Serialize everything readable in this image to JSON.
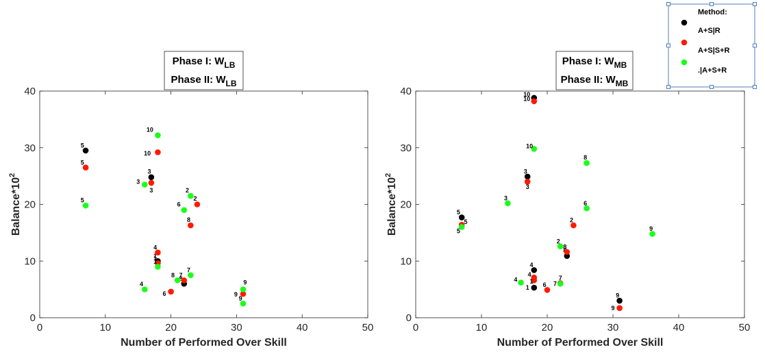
{
  "chart_data": [
    {
      "type": "scatter",
      "title_lines": [
        {
          "text": "Phase I: W",
          "sub": "LB"
        },
        {
          "text": "Phase II: W",
          "sub": "LB"
        }
      ],
      "xlabel": "Number of Performed Over Skill",
      "ylabel": "Balance*10",
      "ylabel_sup": "2",
      "xlim": [
        0,
        50
      ],
      "ylim": [
        0,
        40
      ],
      "xticks": [
        "0",
        "10",
        "20",
        "30",
        "40",
        "50"
      ],
      "yticks": [
        "0",
        "10",
        "20",
        "30",
        "40"
      ],
      "grid": false,
      "series": [
        {
          "color": "#000000",
          "points": [
            {
              "label": "5",
              "x": 7,
              "y": 29.5,
              "lx": 6.5,
              "ly": 30.4
            },
            {
              "label": "3",
              "x": 17,
              "y": 24.8,
              "lx": 16.7,
              "ly": 25.8
            },
            {
              "label": "1",
              "x": 18,
              "y": 10.0,
              "lx": 17.6,
              "ly": 10.9
            },
            {
              "label": "8",
              "x": 22,
              "y": 6.0,
              "lx": 21.5,
              "ly": 6.9
            }
          ]
        },
        {
          "color": "#ff1a00",
          "points": [
            {
              "label": "5",
              "x": 7,
              "y": 26.5,
              "lx": 6.5,
              "ly": 27.4
            },
            {
              "label": "10",
              "x": 18,
              "y": 29.2,
              "lx": 16.4,
              "ly": 29.0
            },
            {
              "label": "3",
              "x": 17,
              "y": 23.8,
              "lx": 17.0,
              "ly": 22.5
            },
            {
              "label": "2",
              "x": 24,
              "y": 20.0,
              "lx": 23.7,
              "ly": 21.0
            },
            {
              "label": "4",
              "x": 18,
              "y": 11.5,
              "lx": 17.6,
              "ly": 12.4
            },
            {
              "label": "1",
              "x": 18,
              "y": 9.6,
              "lx": 17.6,
              "ly": 10.5
            },
            {
              "label": "8",
              "x": 23,
              "y": 16.3,
              "lx": 22.7,
              "ly": 17.3
            },
            {
              "label": "7",
              "x": 22,
              "y": 6.6,
              "lx": 21.5,
              "ly": 7.5
            },
            {
              "label": "6",
              "x": 20,
              "y": 4.6,
              "lx": 19.0,
              "ly": 4.2
            },
            {
              "label": "9",
              "x": 31,
              "y": 4.2,
              "lx": 29.9,
              "ly": 4.1
            }
          ]
        },
        {
          "color": "#1aff1a",
          "points": [
            {
              "label": "5",
              "x": 7,
              "y": 19.8,
              "lx": 6.5,
              "ly": 20.7
            },
            {
              "label": "10",
              "x": 18,
              "y": 32.2,
              "lx": 16.8,
              "ly": 33.2
            },
            {
              "label": "3",
              "x": 16,
              "y": 23.5,
              "lx": 15.0,
              "ly": 24.0
            },
            {
              "label": "2",
              "x": 23,
              "y": 21.5,
              "lx": 22.5,
              "ly": 22.5
            },
            {
              "label": "6",
              "x": 22,
              "y": 19.0,
              "lx": 21.2,
              "ly": 20.0
            },
            {
              "label": "1",
              "x": 18,
              "y": 9.0,
              "lx": 17.6,
              "ly": 9.9
            },
            {
              "label": "8",
              "x": 21,
              "y": 6.6,
              "lx": 20.3,
              "ly": 7.5
            },
            {
              "label": "7",
              "x": 23,
              "y": 7.5,
              "lx": 22.7,
              "ly": 8.4
            },
            {
              "label": "4",
              "x": 16,
              "y": 5.0,
              "lx": 15.5,
              "ly": 5.9
            },
            {
              "label": "9",
              "x": 31,
              "y": 2.5,
              "lx": 30.6,
              "ly": 3.4
            },
            {
              "label": "9",
              "x": 31,
              "y": 5.0,
              "lx": 31.3,
              "ly": 6.2
            }
          ]
        }
      ]
    },
    {
      "type": "scatter",
      "title_lines": [
        {
          "text": "Phase I: W",
          "sub": "MB"
        },
        {
          "text": "Phase II: W",
          "sub": "MB"
        }
      ],
      "xlabel": "Number of Performed Over Skill",
      "ylabel": "Balance*10",
      "ylabel_sup": "2",
      "xlim": [
        0,
        50
      ],
      "ylim": [
        0,
        40
      ],
      "xticks": [
        "0",
        "10",
        "20",
        "30",
        "40",
        "50"
      ],
      "yticks": [
        "0",
        "10",
        "20",
        "30",
        "40"
      ],
      "grid": false,
      "series": [
        {
          "color": "#000000",
          "points": [
            {
              "label": "10",
              "x": 18,
              "y": 38.8,
              "lx": 16.9,
              "ly": 39.4
            },
            {
              "label": "3",
              "x": 17,
              "y": 24.9,
              "lx": 16.7,
              "ly": 25.8
            },
            {
              "label": "5",
              "x": 7,
              "y": 17.7,
              "lx": 6.5,
              "ly": 18.6
            },
            {
              "label": "4",
              "x": 18,
              "y": 8.4,
              "lx": 17.6,
              "ly": 9.3
            },
            {
              "label": "1",
              "x": 18,
              "y": 5.3,
              "lx": 17.0,
              "ly": 5.3
            },
            {
              "label": "8",
              "x": 23,
              "y": 10.9,
              "lx": 22.7,
              "ly": 11.9
            },
            {
              "label": "9",
              "x": 31,
              "y": 3.0,
              "lx": 30.7,
              "ly": 3.9
            }
          ]
        },
        {
          "color": "#ff1a00",
          "points": [
            {
              "label": "10",
              "x": 18,
              "y": 38.2,
              "lx": 16.9,
              "ly": 38.6
            },
            {
              "label": "3",
              "x": 17,
              "y": 24.0,
              "lx": 17.0,
              "ly": 23.1
            },
            {
              "label": "5",
              "x": 7,
              "y": 16.4,
              "lx": 7.6,
              "ly": 16.9
            },
            {
              "label": "2",
              "x": 24,
              "y": 16.3,
              "lx": 23.7,
              "ly": 17.2
            },
            {
              "label": "8",
              "x": 23,
              "y": 11.6,
              "lx": 22.7,
              "ly": 12.5
            },
            {
              "label": "4",
              "x": 18,
              "y": 7.1,
              "lx": 17.3,
              "ly": 7.6
            },
            {
              "label": "1",
              "x": 18,
              "y": 6.6,
              "lx": 17.6,
              "ly": 6.4
            },
            {
              "label": "7",
              "x": 22,
              "y": 6.1,
              "lx": 22.0,
              "ly": 7.0
            },
            {
              "label": "6",
              "x": 20,
              "y": 4.9,
              "lx": 19.6,
              "ly": 5.8
            },
            {
              "label": "9",
              "x": 31,
              "y": 1.7,
              "lx": 30.0,
              "ly": 1.7
            }
          ]
        },
        {
          "color": "#1aff1a",
          "points": [
            {
              "label": "10",
              "x": 18,
              "y": 29.8,
              "lx": 17.3,
              "ly": 30.3
            },
            {
              "label": "8",
              "x": 26,
              "y": 27.3,
              "lx": 25.8,
              "ly": 28.3
            },
            {
              "label": "3",
              "x": 14,
              "y": 20.2,
              "lx": 13.7,
              "ly": 21.1
            },
            {
              "label": "5",
              "x": 7,
              "y": 16.0,
              "lx": 6.5,
              "ly": 15.3
            },
            {
              "label": "6",
              "x": 26,
              "y": 19.3,
              "lx": 25.8,
              "ly": 20.2
            },
            {
              "label": "2",
              "x": 22,
              "y": 12.6,
              "lx": 21.7,
              "ly": 13.5
            },
            {
              "label": "9",
              "x": 36,
              "y": 14.8,
              "lx": 35.8,
              "ly": 15.7
            },
            {
              "label": "7",
              "x": 22,
              "y": 6.0,
              "lx": 21.2,
              "ly": 6.0
            },
            {
              "label": "4",
              "x": 16,
              "y": 6.2,
              "lx": 15.2,
              "ly": 6.7
            }
          ]
        }
      ]
    }
  ],
  "legend": {
    "title": "Method:",
    "entries": [
      {
        "label": "A+S|R",
        "color": "#000000"
      },
      {
        "label": "A+S|S+R",
        "color": "#ff1a00"
      },
      {
        "label": ".|A+S+R",
        "color": "#1aff1a"
      }
    ]
  }
}
